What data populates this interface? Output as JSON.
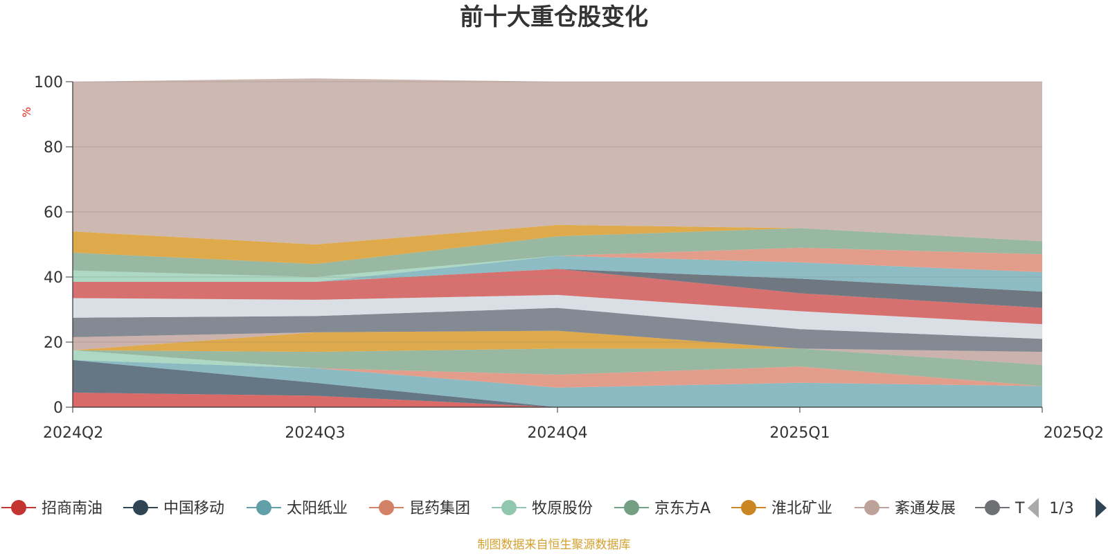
{
  "chart_data": {
    "type": "area",
    "title": "前十大重仓股变化",
    "ylabel": "%",
    "ylim": [
      0,
      100
    ],
    "yticks": [
      0,
      20,
      40,
      60,
      80,
      100
    ],
    "categories": [
      "2024Q2",
      "2024Q3",
      "2024Q4",
      "2025Q1",
      "2025Q2"
    ],
    "grid": true,
    "stacked": true,
    "series": [
      {
        "name": "招商南油",
        "color": "#d4504e",
        "values": [
          4.5,
          3.5,
          0,
          0,
          0
        ]
      },
      {
        "name": "中国移动",
        "color": "#4a5f70",
        "values": [
          10,
          4,
          0,
          0,
          0
        ]
      },
      {
        "name": "太阳纸业",
        "color": "#78aeb8",
        "values": [
          0,
          4.5,
          6,
          7.5,
          6.5
        ]
      },
      {
        "name": "昆药集团",
        "color": "#de8d77",
        "values": [
          0,
          0,
          4,
          5,
          0
        ]
      },
      {
        "name": "牧原股份",
        "color": "#9fd1b8",
        "values": [
          3,
          0,
          0,
          0,
          0
        ]
      },
      {
        "name": "京东方A",
        "color": "#86ac92",
        "values": [
          0,
          5,
          8,
          5.5,
          6.5
        ]
      },
      {
        "name": "淮北矿业",
        "color": "#d99b2b",
        "values": [
          0,
          6,
          5.5,
          0,
          0
        ]
      },
      {
        "name": "紊通发展",
        "color": "#c3a59d",
        "values": [
          4,
          0,
          0,
          0,
          4
        ]
      },
      {
        "name": "T",
        "color": "#6e7580",
        "values": [
          6,
          5,
          7,
          6,
          4
        ]
      },
      {
        "name": "",
        "color": "#d3d8e0",
        "values": [
          6,
          5,
          4,
          5.5,
          4.5
        ]
      },
      {
        "name": "",
        "color": "#d05856",
        "values": [
          5,
          5.5,
          8,
          5.5,
          5
        ]
      },
      {
        "name": "",
        "color": "#56606b",
        "values": [
          0,
          0,
          0,
          4.5,
          5
        ]
      },
      {
        "name": "",
        "color": "#79b0bb",
        "values": [
          0,
          0,
          4,
          5,
          6
        ]
      },
      {
        "name": "",
        "color": "#de8d77",
        "values": [
          0,
          0,
          0,
          4.5,
          5.5
        ]
      },
      {
        "name": "",
        "color": "#9fd1b8",
        "values": [
          3.5,
          1.5,
          0,
          0,
          0
        ]
      },
      {
        "name": "",
        "color": "#86ac92",
        "values": [
          5.5,
          4,
          6,
          6,
          4
        ]
      },
      {
        "name": "",
        "color": "#d99b2b",
        "values": [
          6.5,
          6,
          3.5,
          0,
          0
        ]
      },
      {
        "name": "",
        "color": "#c6aba4",
        "values": [
          46,
          51,
          44,
          45,
          49
        ]
      }
    ]
  },
  "legend": {
    "items": [
      {
        "label": "招商南油",
        "color": "#c23531"
      },
      {
        "label": "中国移动",
        "color": "#2f4554"
      },
      {
        "label": "太阳纸业",
        "color": "#61a0a8"
      },
      {
        "label": "昆药集团",
        "color": "#d48265"
      },
      {
        "label": "牧原股份",
        "color": "#91c7ae"
      },
      {
        "label": "京东方A",
        "color": "#749f83"
      },
      {
        "label": "淮北矿业",
        "color": "#ca8622"
      },
      {
        "label": "紊通发展",
        "color": "#bda29a"
      },
      {
        "label": "T",
        "color": "#6e7074"
      }
    ],
    "page_indicator": "1/3"
  },
  "footer": {
    "source": "制图数据来自恒生聚源数据库"
  }
}
